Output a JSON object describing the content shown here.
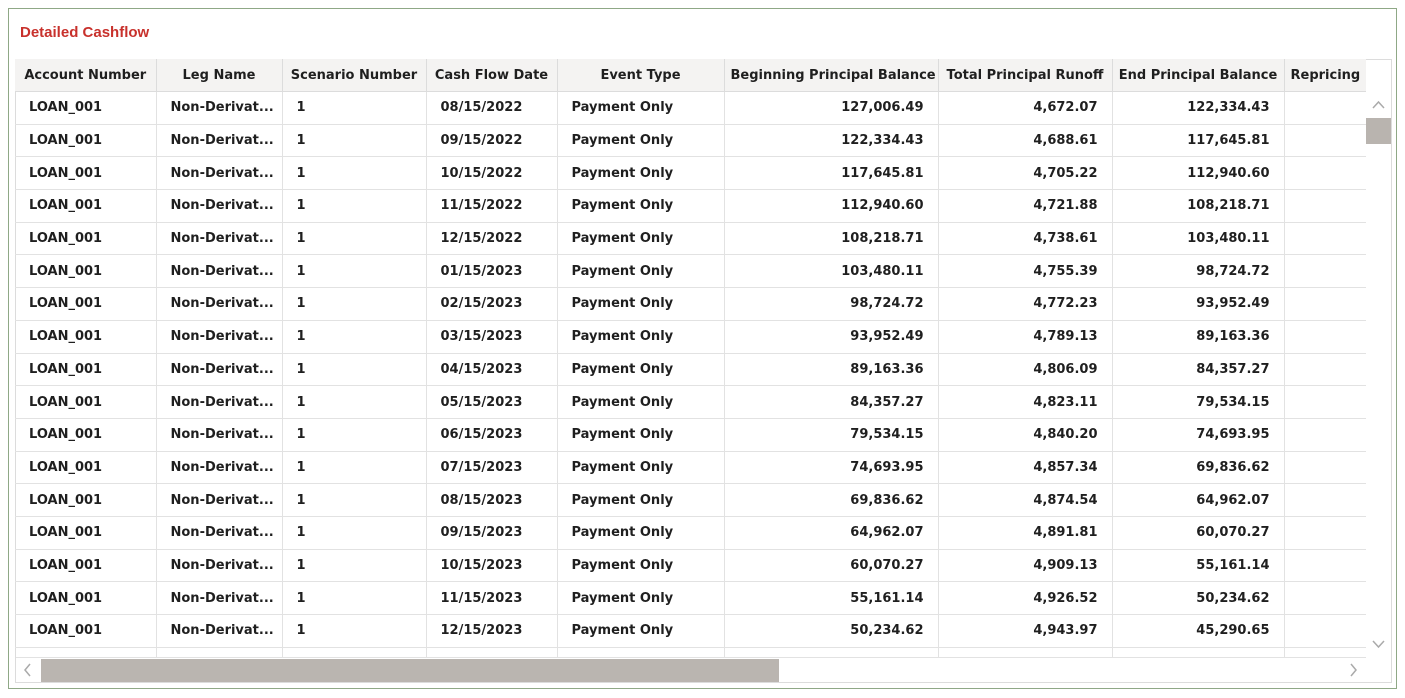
{
  "header": {
    "title": "Detailed Cashflow"
  },
  "table": {
    "columns": [
      "Account Number",
      "Leg Name",
      "Scenario Number",
      "Cash Flow Date",
      "Event Type",
      "Beginning Principal Balance",
      "Total Principal Runoff",
      "End Principal Balance",
      "Repricing"
    ],
    "rows": [
      [
        "LOAN_001",
        "Non-Derivat...",
        "1",
        "08/15/2022",
        "Payment Only",
        "127,006.49",
        "4,672.07",
        "122,334.43"
      ],
      [
        "LOAN_001",
        "Non-Derivat...",
        "1",
        "09/15/2022",
        "Payment Only",
        "122,334.43",
        "4,688.61",
        "117,645.81"
      ],
      [
        "LOAN_001",
        "Non-Derivat...",
        "1",
        "10/15/2022",
        "Payment Only",
        "117,645.81",
        "4,705.22",
        "112,940.60"
      ],
      [
        "LOAN_001",
        "Non-Derivat...",
        "1",
        "11/15/2022",
        "Payment Only",
        "112,940.60",
        "4,721.88",
        "108,218.71"
      ],
      [
        "LOAN_001",
        "Non-Derivat...",
        "1",
        "12/15/2022",
        "Payment Only",
        "108,218.71",
        "4,738.61",
        "103,480.11"
      ],
      [
        "LOAN_001",
        "Non-Derivat...",
        "1",
        "01/15/2023",
        "Payment Only",
        "103,480.11",
        "4,755.39",
        "98,724.72"
      ],
      [
        "LOAN_001",
        "Non-Derivat...",
        "1",
        "02/15/2023",
        "Payment Only",
        "98,724.72",
        "4,772.23",
        "93,952.49"
      ],
      [
        "LOAN_001",
        "Non-Derivat...",
        "1",
        "03/15/2023",
        "Payment Only",
        "93,952.49",
        "4,789.13",
        "89,163.36"
      ],
      [
        "LOAN_001",
        "Non-Derivat...",
        "1",
        "04/15/2023",
        "Payment Only",
        "89,163.36",
        "4,806.09",
        "84,357.27"
      ],
      [
        "LOAN_001",
        "Non-Derivat...",
        "1",
        "05/15/2023",
        "Payment Only",
        "84,357.27",
        "4,823.11",
        "79,534.15"
      ],
      [
        "LOAN_001",
        "Non-Derivat...",
        "1",
        "06/15/2023",
        "Payment Only",
        "79,534.15",
        "4,840.20",
        "74,693.95"
      ],
      [
        "LOAN_001",
        "Non-Derivat...",
        "1",
        "07/15/2023",
        "Payment Only",
        "74,693.95",
        "4,857.34",
        "69,836.62"
      ],
      [
        "LOAN_001",
        "Non-Derivat...",
        "1",
        "08/15/2023",
        "Payment Only",
        "69,836.62",
        "4,874.54",
        "64,962.07"
      ],
      [
        "LOAN_001",
        "Non-Derivat...",
        "1",
        "09/15/2023",
        "Payment Only",
        "64,962.07",
        "4,891.81",
        "60,070.27"
      ],
      [
        "LOAN_001",
        "Non-Derivat...",
        "1",
        "10/15/2023",
        "Payment Only",
        "60,070.27",
        "4,909.13",
        "55,161.14"
      ],
      [
        "LOAN_001",
        "Non-Derivat...",
        "1",
        "11/15/2023",
        "Payment Only",
        "55,161.14",
        "4,926.52",
        "50,234.62"
      ],
      [
        "LOAN_001",
        "Non-Derivat...",
        "1",
        "12/15/2023",
        "Payment Only",
        "50,234.62",
        "4,943.97",
        "45,290.65"
      ]
    ]
  }
}
